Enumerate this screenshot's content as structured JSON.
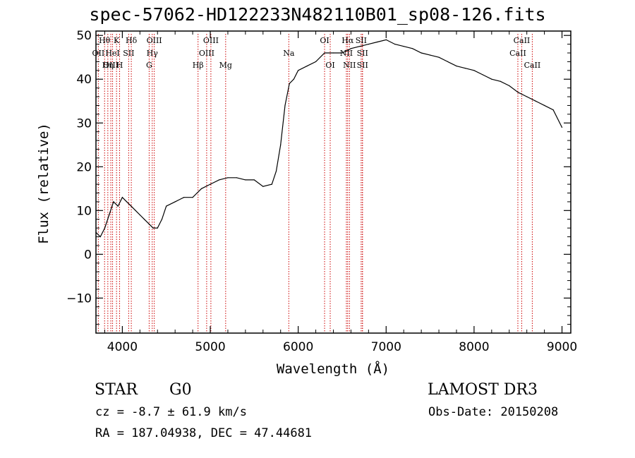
{
  "chart_data": {
    "type": "line",
    "title": "spec-57062-HD122233N482110B01_sp08-126.fits",
    "xlabel": "Wavelength (Å)",
    "ylabel": "Flux (relative)",
    "xlim": [
      3700,
      9100
    ],
    "ylim": [
      -18,
      51
    ],
    "xticks": [
      4000,
      5000,
      6000,
      7000,
      8000,
      9000
    ],
    "yticks": [
      -10,
      0,
      10,
      20,
      30,
      40,
      50
    ],
    "xtick_labels": [
      "4000",
      "5000",
      "6000",
      "7000",
      "8000",
      "9000"
    ],
    "ytick_labels": [
      "−10",
      "0",
      "10",
      "20",
      "30",
      "40",
      "50"
    ],
    "series": [
      {
        "name": "spectrum",
        "x": [
          3700,
          3750,
          3800,
          3850,
          3900,
          3950,
          4000,
          4050,
          4100,
          4150,
          4200,
          4250,
          4300,
          4350,
          4400,
          4450,
          4500,
          4600,
          4700,
          4800,
          4850,
          4900,
          5000,
          5100,
          5200,
          5300,
          5400,
          5500,
          5600,
          5700,
          5750,
          5800,
          5850,
          5900,
          5950,
          6000,
          6100,
          6200,
          6300,
          6400,
          6500,
          6600,
          6700,
          6800,
          6900,
          7000,
          7100,
          7200,
          7300,
          7400,
          7500,
          7600,
          7700,
          7800,
          7900,
          8000,
          8100,
          8200,
          8300,
          8400,
          8500,
          8600,
          8700,
          8800,
          8900,
          9000
        ],
        "values": [
          5,
          4,
          6,
          9,
          12,
          11,
          13,
          12,
          11,
          10,
          9,
          8,
          7,
          6,
          6,
          8,
          11,
          12,
          13,
          13,
          14,
          15,
          16,
          17,
          17.5,
          17.5,
          17,
          17,
          15.5,
          16,
          19,
          25,
          34,
          39,
          40,
          42,
          43,
          44,
          46,
          46,
          46,
          47,
          47.5,
          48,
          48.5,
          49,
          48,
          47.5,
          47,
          46,
          45.5,
          45,
          44,
          43,
          42.5,
          42,
          41,
          40,
          39.5,
          38.5,
          37,
          36,
          35,
          34,
          33,
          29
        ]
      }
    ],
    "lines": [
      {
        "name": "Hθ",
        "wavelength": 3798,
        "row": 0
      },
      {
        "name": "K",
        "wavelength": 3934,
        "row": 0
      },
      {
        "name": "Hδ",
        "wavelength": 4102,
        "row": 0
      },
      {
        "name": "OII",
        "wavelength": 3727,
        "row": 1
      },
      {
        "name": "HeI",
        "wavelength": 3889,
        "row": 1
      },
      {
        "name": "SII",
        "wavelength": 4072,
        "row": 1
      },
      {
        "name": "OIII",
        "wavelength": 3869,
        "row": 2
      },
      {
        "name": "Hη",
        "wavelength": 3835,
        "row": 2
      },
      {
        "name": "H",
        "wavelength": 3969,
        "row": 2
      },
      {
        "name": "OIII",
        "wavelength": 4363,
        "row": 0
      },
      {
        "name": "Hγ",
        "wavelength": 4340,
        "row": 1
      },
      {
        "name": "G",
        "wavelength": 4305,
        "row": 2
      },
      {
        "name": "Hβ",
        "wavelength": 4861,
        "row": 2
      },
      {
        "name": "OIII",
        "wavelength": 5007,
        "row": 0
      },
      {
        "name": "OIII",
        "wavelength": 4959,
        "row": 1
      },
      {
        "name": "Mg",
        "wavelength": 5175,
        "row": 2
      },
      {
        "name": "Na",
        "wavelength": 5893,
        "row": 1
      },
      {
        "name": "OI",
        "wavelength": 6300,
        "row": 0
      },
      {
        "name": "OI",
        "wavelength": 6364,
        "row": 2
      },
      {
        "name": "Hα",
        "wavelength": 6563,
        "row": 0
      },
      {
        "name": "SII",
        "wavelength": 6716,
        "row": 0
      },
      {
        "name": "NII",
        "wavelength": 6548,
        "row": 1
      },
      {
        "name": "NII",
        "wavelength": 6583,
        "row": 2
      },
      {
        "name": "SII",
        "wavelength": 6731,
        "row": 1
      },
      {
        "name": "SII",
        "wavelength": 6731,
        "row": 2
      },
      {
        "name": "CaII",
        "wavelength": 8542,
        "row": 0
      },
      {
        "name": "CaII",
        "wavelength": 8498,
        "row": 1
      },
      {
        "name": "CaII",
        "wavelength": 8662,
        "row": 2
      }
    ]
  },
  "info": {
    "class": "STAR",
    "subclass": "G0",
    "survey": "LAMOST DR3",
    "cz": "cz = -8.7 ± 61.9 km/s",
    "obs_date": "Obs-Date: 20150208",
    "coords": "RA = 187.04938, DEC =  47.44681"
  },
  "colors": {
    "line_marker": "#cc0000",
    "spectrum": "#000000",
    "axes": "#000000"
  }
}
